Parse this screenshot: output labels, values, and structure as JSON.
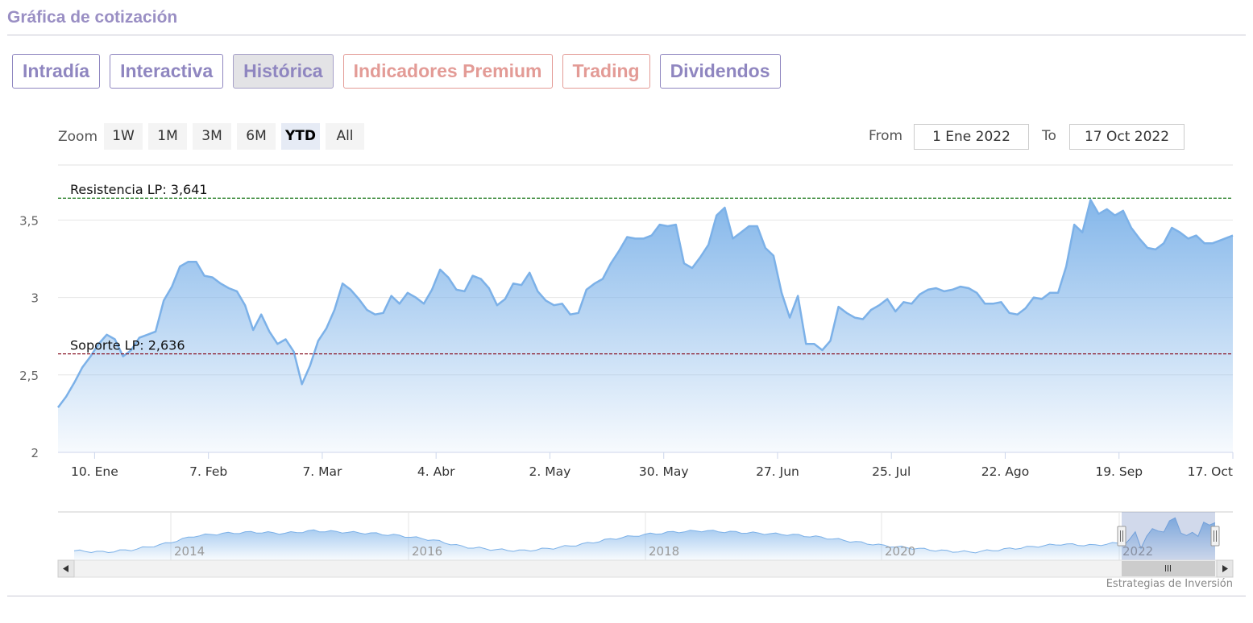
{
  "header": {
    "title": "Gráfica de cotización"
  },
  "tabs": [
    {
      "label": "Intradía",
      "active": false,
      "premium": false
    },
    {
      "label": "Interactiva",
      "active": false,
      "premium": false
    },
    {
      "label": "Histórica",
      "active": true,
      "premium": false
    },
    {
      "label": "Indicadores Premium",
      "active": false,
      "premium": true
    },
    {
      "label": "Trading",
      "active": false,
      "premium": true
    },
    {
      "label": "Dividendos",
      "active": false,
      "premium": false
    }
  ],
  "zoom": {
    "label": "Zoom",
    "buttons": [
      "1W",
      "1M",
      "3M",
      "6M",
      "YTD",
      "All"
    ],
    "selected": "YTD"
  },
  "range": {
    "from_label": "From",
    "from_value": "1 Ene 2022",
    "to_label": "To",
    "to_value": "17 Oct 2022"
  },
  "credits": "Estrategias de Inversión",
  "colors": {
    "line": "#7cb1e8",
    "fill_top": "#7eb3e9",
    "resistance": "#1e7a1e",
    "support": "#8b1a2a",
    "accent": "#9a8fc4"
  },
  "chart_data": {
    "type": "area",
    "title": "",
    "xlabel": "",
    "ylabel": "",
    "ylim": [
      2,
      3.85
    ],
    "yticks": [
      2,
      2.5,
      3,
      3.5
    ],
    "ytick_labels": [
      "2",
      "2,5",
      "3",
      "3,5"
    ],
    "xlim": [
      "2022-01-01",
      "2022-10-17"
    ],
    "xticks": [
      {
        "date": "2022-01-10",
        "label": "10. Ene"
      },
      {
        "date": "2022-02-07",
        "label": "7. Feb"
      },
      {
        "date": "2022-03-07",
        "label": "7. Mar"
      },
      {
        "date": "2022-04-04",
        "label": "4. Abr"
      },
      {
        "date": "2022-05-02",
        "label": "2. May"
      },
      {
        "date": "2022-05-30",
        "label": "30. May"
      },
      {
        "date": "2022-06-27",
        "label": "27. Jun"
      },
      {
        "date": "2022-07-25",
        "label": "25. Jul"
      },
      {
        "date": "2022-08-22",
        "label": "22. Ago"
      },
      {
        "date": "2022-09-19",
        "label": "19. Sep"
      },
      {
        "date": "2022-10-17",
        "label": "17. Oct"
      }
    ],
    "grid": true,
    "legend": "none",
    "reference_lines": [
      {
        "label": "Resistencia LP: 3,641",
        "value": 3.641,
        "style": "dashed"
      },
      {
        "label": "Soporte LP: 2,636",
        "value": 2.636,
        "style": "dashed"
      }
    ],
    "series": [
      {
        "x": [
          "2022-01-01",
          "2022-01-03",
          "2022-01-05",
          "2022-01-07",
          "2022-01-09",
          "2022-01-11",
          "2022-01-13",
          "2022-01-15",
          "2022-01-17",
          "2022-01-19",
          "2022-01-21",
          "2022-01-23",
          "2022-01-25",
          "2022-01-27",
          "2022-01-29",
          "2022-01-31",
          "2022-02-02",
          "2022-02-04",
          "2022-02-06",
          "2022-02-08",
          "2022-02-10",
          "2022-02-12",
          "2022-02-14",
          "2022-02-16",
          "2022-02-18",
          "2022-02-20",
          "2022-02-22",
          "2022-02-24",
          "2022-02-26",
          "2022-02-28",
          "2022-03-02",
          "2022-03-04",
          "2022-03-06",
          "2022-03-08",
          "2022-03-10",
          "2022-03-12",
          "2022-03-14",
          "2022-03-16",
          "2022-03-18",
          "2022-03-20",
          "2022-03-22",
          "2022-03-24",
          "2022-03-26",
          "2022-03-28",
          "2022-03-30",
          "2022-04-01",
          "2022-04-03",
          "2022-04-05",
          "2022-04-07",
          "2022-04-09",
          "2022-04-11",
          "2022-04-13",
          "2022-04-15",
          "2022-04-17",
          "2022-04-19",
          "2022-04-21",
          "2022-04-23",
          "2022-04-25",
          "2022-04-27",
          "2022-04-29",
          "2022-05-01",
          "2022-05-03",
          "2022-05-05",
          "2022-05-07",
          "2022-05-09",
          "2022-05-11",
          "2022-05-13",
          "2022-05-15",
          "2022-05-17",
          "2022-05-19",
          "2022-05-21",
          "2022-05-23",
          "2022-05-25",
          "2022-05-27",
          "2022-05-29",
          "2022-05-31",
          "2022-06-02",
          "2022-06-04",
          "2022-06-06",
          "2022-06-08",
          "2022-06-10",
          "2022-06-12",
          "2022-06-14",
          "2022-06-16",
          "2022-06-18",
          "2022-06-20",
          "2022-06-22",
          "2022-06-24",
          "2022-06-26",
          "2022-06-28",
          "2022-06-30",
          "2022-07-02",
          "2022-07-04",
          "2022-07-06",
          "2022-07-08",
          "2022-07-10",
          "2022-07-12",
          "2022-07-14",
          "2022-07-16",
          "2022-07-18",
          "2022-07-20",
          "2022-07-22",
          "2022-07-24",
          "2022-07-26",
          "2022-07-28",
          "2022-07-30",
          "2022-08-01",
          "2022-08-03",
          "2022-08-05",
          "2022-08-07",
          "2022-08-09",
          "2022-08-11",
          "2022-08-13",
          "2022-08-15",
          "2022-08-17",
          "2022-08-19",
          "2022-08-21",
          "2022-08-23",
          "2022-08-25",
          "2022-08-27",
          "2022-08-29",
          "2022-08-31",
          "2022-09-02",
          "2022-09-04",
          "2022-09-06",
          "2022-09-08",
          "2022-09-10",
          "2022-09-12",
          "2022-09-14",
          "2022-09-16",
          "2022-09-18",
          "2022-09-20",
          "2022-09-22",
          "2022-09-24",
          "2022-09-26",
          "2022-09-28",
          "2022-09-30",
          "2022-10-02",
          "2022-10-04",
          "2022-10-06",
          "2022-10-08",
          "2022-10-10",
          "2022-10-12",
          "2022-10-14",
          "2022-10-17"
        ],
        "values": [
          2.29,
          2.36,
          2.45,
          2.55,
          2.62,
          2.7,
          2.76,
          2.73,
          2.62,
          2.66,
          2.74,
          2.76,
          2.78,
          2.98,
          3.07,
          3.2,
          3.23,
          3.23,
          3.14,
          3.13,
          3.09,
          3.06,
          3.04,
          2.95,
          2.79,
          2.89,
          2.78,
          2.7,
          2.73,
          2.65,
          2.44,
          2.56,
          2.72,
          2.8,
          2.92,
          3.09,
          3.05,
          2.99,
          2.92,
          2.89,
          2.9,
          3.01,
          2.96,
          3.03,
          3.0,
          2.96,
          3.05,
          3.18,
          3.13,
          3.05,
          3.04,
          3.14,
          3.12,
          3.06,
          2.95,
          2.99,
          3.09,
          3.08,
          3.16,
          3.04,
          2.98,
          2.95,
          2.96,
          2.89,
          2.9,
          3.05,
          3.09,
          3.12,
          3.22,
          3.3,
          3.39,
          3.38,
          3.38,
          3.4,
          3.47,
          3.46,
          3.47,
          3.22,
          3.19,
          3.26,
          3.34,
          3.53,
          3.58,
          3.38,
          3.42,
          3.46,
          3.46,
          3.32,
          3.27,
          3.03,
          2.87,
          3.01,
          2.7,
          2.7,
          2.66,
          2.72,
          2.94,
          2.9,
          2.87,
          2.86,
          2.92,
          2.95,
          2.99,
          2.91,
          2.97,
          2.96,
          3.02,
          3.05,
          3.06,
          3.04,
          3.05,
          3.07,
          3.06,
          3.03,
          2.96,
          2.96,
          2.97,
          2.9,
          2.89,
          2.93,
          3.0,
          2.99,
          3.03,
          3.03,
          3.2,
          3.47,
          3.42,
          3.63,
          3.54,
          3.57,
          3.53,
          3.56,
          3.45,
          3.38,
          3.32,
          3.31,
          3.35,
          3.45,
          3.42,
          3.38,
          3.4,
          3.35,
          3.35,
          3.37,
          3.4
        ]
      }
    ],
    "navigator": {
      "xticks": [
        "2014",
        "2016",
        "2018",
        "2020",
        "2022"
      ]
    }
  }
}
